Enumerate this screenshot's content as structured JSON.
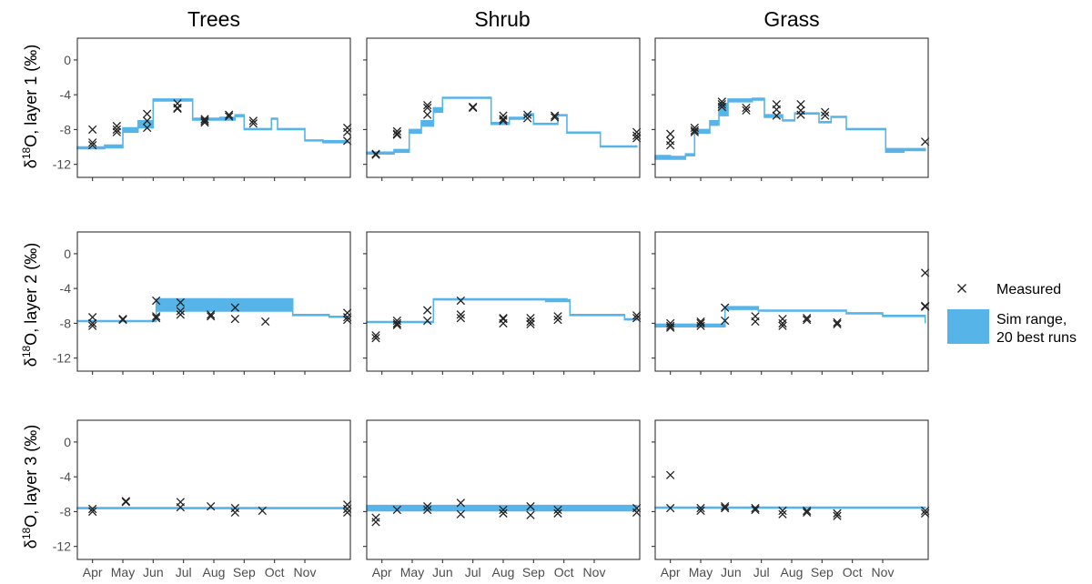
{
  "chart_data": {
    "type": "line",
    "facet_columns": [
      "Trees",
      "Shrub",
      "Grass"
    ],
    "row_axis_titles": [
      {
        "prefix": "δ",
        "sup": "18",
        "suffix": "O, layer 1 (‰)"
      },
      {
        "prefix": "δ",
        "sup": "18",
        "suffix": "O, layer 2 (‰)"
      },
      {
        "prefix": "δ",
        "sup": "18",
        "suffix": "O, layer 3 (‰)"
      }
    ],
    "x_tick_labels": [
      "Apr",
      "May",
      "Jun",
      "Jul",
      "Aug",
      "Sep",
      "Oct",
      "Nov"
    ],
    "x_tick_pos": [
      0.5,
      1.5,
      2.5,
      3.5,
      4.5,
      5.5,
      6.5,
      7.5
    ],
    "xlim": [
      0,
      9
    ],
    "ylim": [
      -13.5,
      2.5
    ],
    "y_ticks": [
      0,
      -4,
      -8,
      -12
    ],
    "y_tick_labels": [
      "0",
      "-4",
      "-8",
      "-12"
    ],
    "grid": false,
    "legend_position": "right",
    "legend": {
      "measured_label": "Measured",
      "sim_label_lines": [
        "Sim range,",
        "20 best runs"
      ]
    },
    "colors": {
      "sim": "#56B4E9",
      "measured": "#222222"
    },
    "panels": [
      {
        "row": 0,
        "col": 0,
        "sim": [
          [
            0,
            -10.2,
            -10.0
          ],
          [
            0.5,
            -10.2,
            -10.0
          ],
          [
            0.9,
            -10.1,
            -9.8
          ],
          [
            1.5,
            -8.3,
            -7.8
          ],
          [
            2.0,
            -7.8,
            -7.0
          ],
          [
            2.5,
            -4.7,
            -4.5
          ],
          [
            3.8,
            -6.9,
            -6.7
          ],
          [
            4.7,
            -6.9,
            -6.6
          ],
          [
            5.2,
            -6.5,
            -6.3
          ],
          [
            5.5,
            -8.0,
            -7.9
          ],
          [
            6.4,
            -6.8,
            -6.7
          ],
          [
            6.6,
            -8.0,
            -7.9
          ],
          [
            7.5,
            -9.3,
            -9.2
          ],
          [
            8.1,
            -9.5,
            -9.3
          ],
          [
            8.9,
            -9.5,
            -9.3
          ]
        ],
        "measured": [
          [
            0.5,
            -8.0
          ],
          [
            0.5,
            -9.5
          ],
          [
            0.5,
            -9.8
          ],
          [
            1.3,
            -7.6
          ],
          [
            1.3,
            -8.0
          ],
          [
            1.3,
            -8.3
          ],
          [
            2.3,
            -6.2
          ],
          [
            2.3,
            -7.0
          ],
          [
            2.3,
            -7.8
          ],
          [
            3.3,
            -5.0
          ],
          [
            3.3,
            -5.5
          ],
          [
            3.3,
            -5.6
          ],
          [
            4.2,
            -6.8
          ],
          [
            4.2,
            -7.0
          ],
          [
            4.2,
            -7.2
          ],
          [
            5.0,
            -6.3
          ],
          [
            5.0,
            -6.5
          ],
          [
            5.8,
            -7.0
          ],
          [
            5.8,
            -7.3
          ],
          [
            8.9,
            -7.8
          ],
          [
            8.9,
            -8.3
          ],
          [
            8.9,
            -9.3
          ]
        ]
      },
      {
        "row": 0,
        "col": 1,
        "sim": [
          [
            0,
            -10.8,
            -10.6
          ],
          [
            0.5,
            -10.8,
            -10.6
          ],
          [
            0.9,
            -10.6,
            -10.3
          ],
          [
            1.4,
            -8.4,
            -8.0
          ],
          [
            1.8,
            -7.6,
            -7.0
          ],
          [
            2.2,
            -6.0,
            -5.5
          ],
          [
            2.5,
            -4.4,
            -4.3
          ],
          [
            3.8,
            -4.4,
            -4.3
          ],
          [
            4.1,
            -7.4,
            -7.2
          ],
          [
            4.7,
            -6.8,
            -6.6
          ],
          [
            5.2,
            -6.4,
            -6.2
          ],
          [
            5.5,
            -7.4,
            -7.3
          ],
          [
            6.3,
            -6.4,
            -6.3
          ],
          [
            6.6,
            -8.4,
            -8.3
          ],
          [
            7.3,
            -8.4,
            -8.3
          ],
          [
            7.7,
            -10.0,
            -9.9
          ],
          [
            8.9,
            -10.0,
            -9.9
          ]
        ],
        "measured": [
          [
            0.3,
            -10.8
          ],
          [
            0.3,
            -10.9
          ],
          [
            1.0,
            -8.2
          ],
          [
            1.0,
            -8.5
          ],
          [
            1.0,
            -8.6
          ],
          [
            2.0,
            -5.2
          ],
          [
            2.0,
            -5.5
          ],
          [
            2.0,
            -6.3
          ],
          [
            3.5,
            -5.4
          ],
          [
            3.5,
            -5.5
          ],
          [
            4.5,
            -6.4
          ],
          [
            4.5,
            -6.8
          ],
          [
            4.5,
            -7.0
          ],
          [
            5.3,
            -6.3
          ],
          [
            5.3,
            -6.7
          ],
          [
            6.2,
            -6.4
          ],
          [
            6.2,
            -6.6
          ],
          [
            8.9,
            -8.3
          ],
          [
            8.9,
            -8.7
          ],
          [
            8.9,
            -9.0
          ]
        ]
      },
      {
        "row": 0,
        "col": 2,
        "sim": [
          [
            0,
            -11.4,
            -11.0
          ],
          [
            0.5,
            -11.4,
            -11.1
          ],
          [
            1.0,
            -11.0,
            -10.8
          ],
          [
            1.3,
            -8.4,
            -8.0
          ],
          [
            1.8,
            -7.5,
            -7.0
          ],
          [
            2.1,
            -6.4,
            -5.0
          ],
          [
            2.4,
            -4.8,
            -4.5
          ],
          [
            3.2,
            -4.6,
            -4.4
          ],
          [
            3.6,
            -6.6,
            -6.3
          ],
          [
            4.2,
            -7.0,
            -6.9
          ],
          [
            4.6,
            -6.2,
            -6.1
          ],
          [
            5.4,
            -7.2,
            -7.1
          ],
          [
            5.8,
            -6.6,
            -6.5
          ],
          [
            6.3,
            -8.0,
            -7.9
          ],
          [
            7.1,
            -8.0,
            -7.9
          ],
          [
            7.6,
            -10.6,
            -10.2
          ],
          [
            8.2,
            -10.4,
            -10.2
          ],
          [
            8.9,
            -10.3,
            -10.2
          ]
        ],
        "measured": [
          [
            0.5,
            -8.5
          ],
          [
            0.5,
            -9.3
          ],
          [
            0.5,
            -9.8
          ],
          [
            1.3,
            -7.8
          ],
          [
            1.3,
            -8.1
          ],
          [
            1.3,
            -8.3
          ],
          [
            2.2,
            -4.8
          ],
          [
            2.2,
            -5.1
          ],
          [
            2.2,
            -5.4
          ],
          [
            3.0,
            -5.5
          ],
          [
            3.0,
            -5.8
          ],
          [
            4.0,
            -5.1
          ],
          [
            4.0,
            -5.7
          ],
          [
            4.0,
            -6.4
          ],
          [
            4.8,
            -5.1
          ],
          [
            4.8,
            -5.8
          ],
          [
            4.8,
            -6.3
          ],
          [
            5.6,
            -6.0
          ],
          [
            5.6,
            -6.4
          ],
          [
            8.9,
            -9.4
          ]
        ]
      },
      {
        "row": 1,
        "col": 0,
        "sim": [
          [
            0,
            -7.8,
            -7.7
          ],
          [
            2.5,
            -7.8,
            -7.7
          ],
          [
            2.6,
            -6.6,
            -5.2
          ],
          [
            7.0,
            -6.6,
            -5.2
          ],
          [
            7.1,
            -7.1,
            -7.0
          ],
          [
            8.3,
            -7.3,
            -7.2
          ],
          [
            8.9,
            -7.7,
            -7.6
          ]
        ],
        "measured": [
          [
            0.5,
            -7.3
          ],
          [
            0.5,
            -8.0
          ],
          [
            0.5,
            -8.3
          ],
          [
            1.5,
            -7.5
          ],
          [
            1.5,
            -7.6
          ],
          [
            2.6,
            -5.4
          ],
          [
            2.6,
            -7.2
          ],
          [
            2.6,
            -7.4
          ],
          [
            3.4,
            -5.6
          ],
          [
            3.4,
            -6.6
          ],
          [
            3.4,
            -7.0
          ],
          [
            4.4,
            -7.0
          ],
          [
            4.4,
            -7.2
          ],
          [
            5.2,
            -6.2
          ],
          [
            5.2,
            -7.5
          ],
          [
            6.2,
            -7.8
          ],
          [
            8.9,
            -6.8
          ],
          [
            8.9,
            -7.3
          ],
          [
            8.9,
            -7.6
          ]
        ]
      },
      {
        "row": 1,
        "col": 1,
        "sim": [
          [
            0,
            -7.9,
            -7.8
          ],
          [
            1.8,
            -7.9,
            -7.8
          ],
          [
            2.2,
            -5.3,
            -5.2
          ],
          [
            5.9,
            -5.5,
            -5.2
          ],
          [
            6.6,
            -5.5,
            -5.3
          ],
          [
            6.7,
            -7.1,
            -7.0
          ],
          [
            8.5,
            -7.6,
            -7.5
          ],
          [
            8.9,
            -7.7,
            -7.6
          ]
        ],
        "measured": [
          [
            0.3,
            -9.4
          ],
          [
            0.3,
            -9.7
          ],
          [
            1.0,
            -7.7
          ],
          [
            1.0,
            -8.0
          ],
          [
            1.0,
            -8.2
          ],
          [
            2.0,
            -6.5
          ],
          [
            2.0,
            -7.7
          ],
          [
            3.1,
            -5.4
          ],
          [
            3.1,
            -7.0
          ],
          [
            3.1,
            -7.4
          ],
          [
            4.5,
            -7.4
          ],
          [
            4.5,
            -7.5
          ],
          [
            4.5,
            -8.0
          ],
          [
            5.4,
            -7.4
          ],
          [
            5.4,
            -7.8
          ],
          [
            5.4,
            -8.1
          ],
          [
            6.3,
            -7.2
          ],
          [
            6.3,
            -7.6
          ],
          [
            8.9,
            -7.1
          ],
          [
            8.9,
            -7.4
          ]
        ]
      },
      {
        "row": 1,
        "col": 2,
        "sim": [
          [
            0,
            -8.4,
            -8.1
          ],
          [
            2.2,
            -8.4,
            -8.1
          ],
          [
            2.3,
            -6.4,
            -6.1
          ],
          [
            3.3,
            -6.4,
            -6.1
          ],
          [
            3.4,
            -6.6,
            -6.5
          ],
          [
            6.3,
            -6.9,
            -6.8
          ],
          [
            7.5,
            -7.2,
            -7.1
          ],
          [
            8.9,
            -8.0,
            -7.9
          ]
        ],
        "measured": [
          [
            0.5,
            -8.0
          ],
          [
            0.5,
            -8.3
          ],
          [
            0.5,
            -8.5
          ],
          [
            1.5,
            -7.8
          ],
          [
            1.5,
            -8.0
          ],
          [
            1.5,
            -8.3
          ],
          [
            2.3,
            -6.2
          ],
          [
            2.3,
            -7.7
          ],
          [
            3.3,
            -7.2
          ],
          [
            3.3,
            -7.8
          ],
          [
            4.2,
            -7.5
          ],
          [
            4.2,
            -8.0
          ],
          [
            4.2,
            -8.3
          ],
          [
            5.0,
            -7.4
          ],
          [
            5.0,
            -7.6
          ],
          [
            6.0,
            -7.9
          ],
          [
            6.0,
            -8.1
          ],
          [
            8.9,
            -2.2
          ],
          [
            8.9,
            -6.0
          ],
          [
            8.9,
            -6.1
          ]
        ]
      },
      {
        "row": 2,
        "col": 0,
        "sim": [
          [
            0,
            -7.65,
            -7.55
          ],
          [
            8.9,
            -7.65,
            -7.55
          ]
        ],
        "measured": [
          [
            0.5,
            -7.7
          ],
          [
            0.5,
            -8.0
          ],
          [
            1.6,
            -6.8
          ],
          [
            1.6,
            -6.9
          ],
          [
            3.4,
            -6.9
          ],
          [
            3.4,
            -7.5
          ],
          [
            4.4,
            -7.4
          ],
          [
            5.2,
            -7.6
          ],
          [
            5.2,
            -8.1
          ],
          [
            6.1,
            -7.9
          ],
          [
            8.9,
            -7.2
          ],
          [
            8.9,
            -7.7
          ],
          [
            8.9,
            -8.1
          ]
        ]
      },
      {
        "row": 2,
        "col": 1,
        "sim": [
          [
            0,
            -7.9,
            -7.3
          ],
          [
            8.9,
            -7.9,
            -7.3
          ]
        ],
        "measured": [
          [
            0.3,
            -8.7
          ],
          [
            0.3,
            -9.2
          ],
          [
            1.0,
            -7.8
          ],
          [
            2.0,
            -7.4
          ],
          [
            2.0,
            -7.8
          ],
          [
            3.1,
            -7.0
          ],
          [
            3.1,
            -8.3
          ],
          [
            4.5,
            -7.8
          ],
          [
            4.5,
            -8.2
          ],
          [
            5.4,
            -7.4
          ],
          [
            5.4,
            -8.4
          ],
          [
            6.3,
            -7.8
          ],
          [
            6.3,
            -8.2
          ],
          [
            8.9,
            -7.6
          ],
          [
            8.9,
            -8.1
          ]
        ]
      },
      {
        "row": 2,
        "col": 2,
        "sim": [
          [
            0,
            -7.6,
            -7.5
          ],
          [
            8.9,
            -7.5,
            -7.4
          ]
        ],
        "measured": [
          [
            0.5,
            -3.8
          ],
          [
            0.5,
            -7.6
          ],
          [
            1.5,
            -7.6
          ],
          [
            1.5,
            -7.9
          ],
          [
            2.3,
            -7.4
          ],
          [
            2.3,
            -7.6
          ],
          [
            3.3,
            -7.6
          ],
          [
            3.3,
            -7.8
          ],
          [
            4.2,
            -7.9
          ],
          [
            4.2,
            -8.3
          ],
          [
            5.0,
            -7.9
          ],
          [
            5.0,
            -8.1
          ],
          [
            6.0,
            -8.2
          ],
          [
            6.0,
            -8.5
          ],
          [
            8.9,
            -7.9
          ],
          [
            8.9,
            -8.2
          ]
        ]
      }
    ]
  }
}
